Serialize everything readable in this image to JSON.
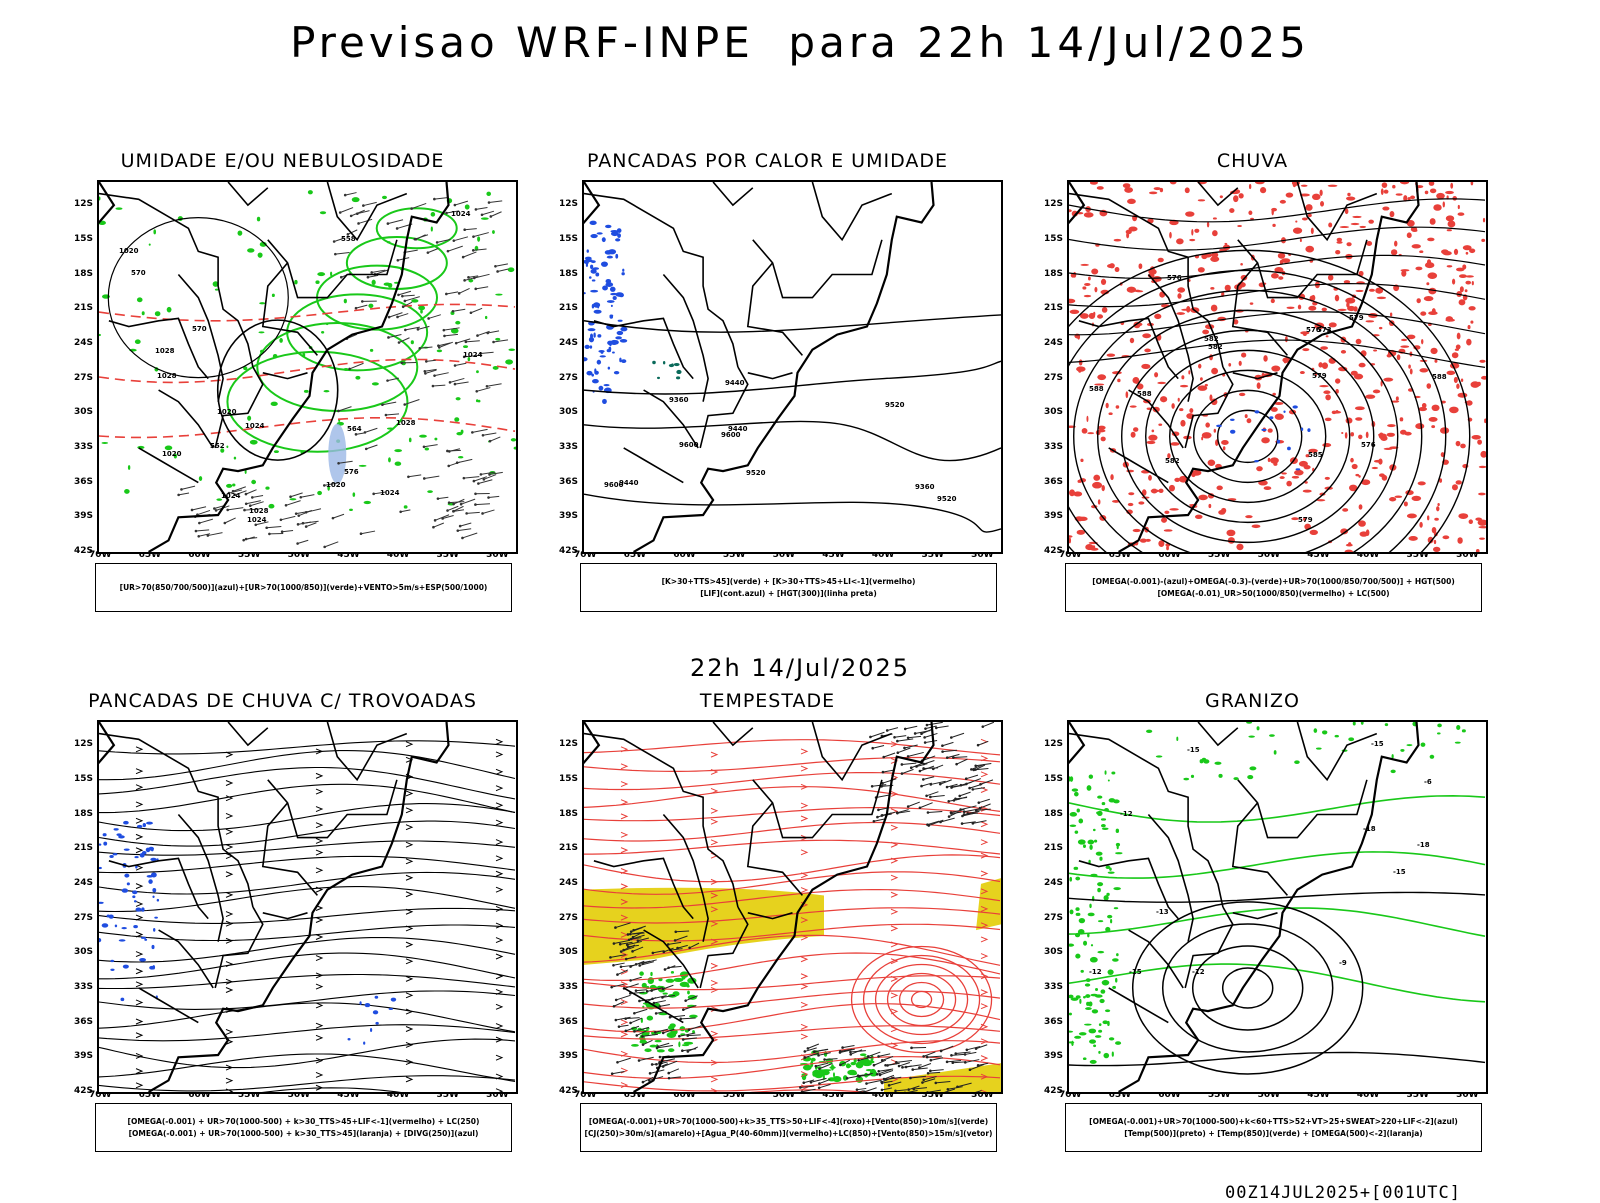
{
  "header": {
    "title": "Previsao WRF-INPE  para 22h 14/Jul/2025"
  },
  "mid_title": "22h 14/Jul/2025",
  "footer": "00Z14JUL2025+[001UTC]",
  "axes": {
    "lat_labels": [
      "12S",
      "15S",
      "18S",
      "21S",
      "24S",
      "27S",
      "30S",
      "33S",
      "36S",
      "39S",
      "42S"
    ],
    "lon_labels": [
      "70W",
      "65W",
      "60W",
      "55W",
      "50W",
      "45W",
      "40W",
      "35W",
      "30W"
    ]
  },
  "colors": {
    "red": "#e8403a",
    "green": "#19c819",
    "blue": "#1f4de0",
    "yellow": "#e6d21e",
    "black": "#000000",
    "light_blue": "#9bb8e6"
  },
  "panels": [
    {
      "id": "umidade",
      "title": "UMIDADE E/OU NEBULOSIDADE",
      "legend": [
        "[UR>70(850/700/500)](azul)+[UR>70(1000/850)](verde)+VENTO>5m/s+ESP(500/1000)"
      ],
      "contour_labels": [
        "1020",
        "1020",
        "1024",
        "1024",
        "1024",
        "1028",
        "1028",
        "1024",
        "1020",
        "1024",
        "1028",
        "1024",
        "564",
        "570",
        "558",
        "570",
        "552",
        "576",
        "1020",
        "1028"
      ]
    },
    {
      "id": "pancadas-calor",
      "title": "PANCADAS POR CALOR E UMIDADE",
      "legend": [
        "[K>30+TTS>45](verde) + [K>30+TTS>45+LI<-1](vermelho)",
        "[LIF](cont.azul) + [HGT(300)](linha preta)"
      ],
      "contour_labels": [
        "9600",
        "9520",
        "9600",
        "9600",
        "9520",
        "9440",
        "9520",
        "9440",
        "9360",
        "9440",
        "9360"
      ]
    },
    {
      "id": "chuva",
      "title": "CHUVA",
      "legend": [
        "[OMEGA(-0.001)-(azul)+OMEGA(-0.3)-(verde)+UR>70(1000/850/700/500)] + HGT(500)",
        "[OMEGA(-0.01)_UR>50(1000/850)(vermelho) + LC(500)"
      ],
      "contour_labels": [
        "588",
        "582",
        "588",
        "588",
        "585",
        "582",
        "579",
        "576",
        "579",
        "582",
        "579",
        "576",
        "573",
        "576"
      ]
    },
    {
      "id": "trovoadas",
      "title": "PANCADAS DE CHUVA C/ TROVOADAS",
      "legend": [
        "[OMEGA(-0.001) + UR>70(1000-500) + k>30_TTS>45+LIF<-1](vermelho) + LC(250)",
        "[OMEGA(-0.001) + UR>70(1000-500) + k>30_TTS>45](laranja) + [DIVG(250)](azul)"
      ],
      "contour_labels": []
    },
    {
      "id": "tempestade",
      "title": "TEMPESTADE",
      "legend": [
        "[OMEGA(-0.001)+UR>70(1000-500)+k>35_TTS>50+LIF<-4](roxo)+[Vento(850)>10m/s](verde)",
        "[CJ(250)>30m/s](amarelo)+[Agua_P(40-60mm)](vermelho)+LC(850)+[Vento(850)>15m/s](vetor)"
      ],
      "contour_labels": []
    },
    {
      "id": "granizo",
      "title": "GRANIZO",
      "legend": [
        "[OMEGA(-0.001)+UR>70(1000-500)+k<60+TTS>52+VT>25+SWEAT>220+LIF<-2](azul)",
        "[Temp(500)](preto) + [Temp(850)](verde) + [OMEGA(500)<-2](laranja)"
      ],
      "contour_labels": [
        "-12",
        "-9",
        "-6",
        "-15",
        "-12",
        "-12",
        "-15",
        "-15",
        "-18",
        "-15",
        "-18",
        "-13"
      ]
    }
  ]
}
